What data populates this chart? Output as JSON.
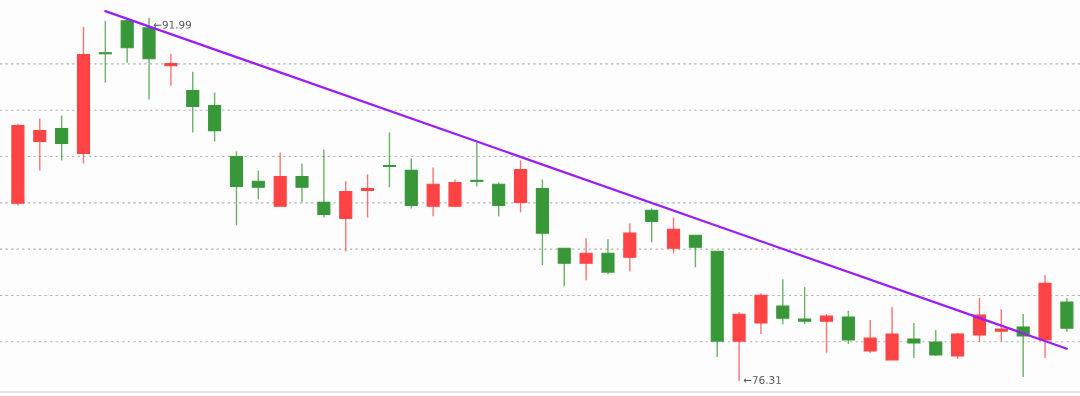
{
  "chart_data": {
    "type": "candlestick",
    "categories": [
      null,
      null,
      null,
      null,
      null,
      null,
      null,
      null,
      null,
      null,
      null,
      null,
      null,
      null,
      null,
      null,
      null,
      null,
      null,
      null,
      null,
      null,
      null,
      null,
      null,
      null,
      null,
      null,
      null,
      null,
      null,
      null,
      null,
      null,
      null,
      null,
      null,
      null,
      null,
      null,
      null,
      null,
      null,
      null,
      null,
      null,
      null,
      null,
      null
    ],
    "ohlc": [
      [
        83.98,
        87.42,
        83.89,
        87.34
      ],
      [
        86.65,
        87.64,
        85.4,
        87.12
      ],
      [
        87.21,
        87.77,
        85.83,
        86.56
      ],
      [
        86.13,
        91.6,
        85.7,
        90.4
      ],
      [
        90.48,
        91.86,
        89.19,
        90.44
      ],
      [
        91.86,
        91.95,
        90.05,
        90.7
      ],
      [
        91.56,
        91.99,
        88.46,
        90.22
      ],
      [
        89.92,
        90.44,
        89.06,
        90.01
      ],
      [
        88.85,
        89.66,
        87.04,
        88.16
      ],
      [
        88.2,
        88.76,
        86.65,
        87.12
      ],
      [
        86.0,
        86.22,
        83.03,
        84.71
      ],
      [
        84.93,
        85.4,
        84.15,
        84.67
      ],
      [
        83.85,
        86.17,
        83.85,
        85.14
      ],
      [
        85.14,
        85.7,
        84.02,
        84.67
      ],
      [
        84.02,
        86.3,
        83.37,
        83.5
      ],
      [
        83.33,
        84.93,
        81.91,
        84.49
      ],
      [
        84.54,
        85.23,
        83.37,
        84.62
      ],
      [
        85.61,
        87.04,
        84.67,
        85.57
      ],
      [
        85.4,
        85.92,
        83.76,
        83.89
      ],
      [
        83.85,
        85.53,
        83.42,
        84.8
      ],
      [
        83.85,
        85.01,
        83.81,
        84.88
      ],
      [
        84.97,
        86.6,
        84.71,
        84.93
      ],
      [
        84.8,
        84.88,
        83.42,
        83.89
      ],
      [
        84.02,
        85.83,
        83.59,
        85.44
      ],
      [
        84.62,
        85.01,
        81.31,
        82.69
      ],
      [
        82.04,
        82.04,
        80.4,
        81.39
      ],
      [
        81.39,
        82.47,
        80.66,
        81.82
      ],
      [
        81.82,
        82.43,
        80.92,
        81.01
      ],
      [
        81.65,
        83.12,
        81.05,
        82.69
      ],
      [
        83.68,
        83.76,
        82.3,
        83.2
      ],
      [
        82.04,
        83.37,
        81.82,
        82.86
      ],
      [
        82.6,
        82.6,
        81.22,
        82.08
      ],
      [
        81.91,
        81.91,
        77.34,
        78.03
      ],
      [
        78.03,
        79.28,
        76.31,
        79.19
      ],
      [
        78.81,
        80.1,
        78.34,
        80.01
      ],
      [
        79.54,
        80.7,
        78.76,
        79.02
      ],
      [
        78.98,
        80.36,
        78.76,
        78.89
      ],
      [
        78.89,
        79.2,
        77.52,
        79.11
      ],
      [
        79.07,
        79.33,
        77.9,
        78.08
      ],
      [
        77.6,
        78.94,
        77.52,
        78.16
      ],
      [
        77.21,
        79.5,
        77.21,
        78.33
      ],
      [
        78.12,
        78.81,
        77.3,
        77.95
      ],
      [
        77.99,
        78.51,
        77.39,
        77.43
      ],
      [
        77.39,
        78.38,
        77.26,
        78.33
      ],
      [
        78.29,
        79.89,
        77.99,
        79.15
      ],
      [
        78.46,
        79.41,
        78.03,
        78.55
      ],
      [
        78.64,
        79.2,
        76.48,
        78.25
      ],
      [
        78.08,
        80.88,
        77.3,
        80.53
      ],
      [
        79.71,
        79.89,
        78.42,
        78.59
      ]
    ],
    "colors": [
      "#fd4343",
      "#fd4343",
      "#389738",
      "#fd4343",
      "#389738",
      "#389738",
      "#389738",
      "#fd4343",
      "#389738",
      "#389738",
      "#389738",
      "#389738",
      "#fd4343",
      "#389738",
      "#389738",
      "#fd4343",
      "#fd4343",
      "#389738",
      "#389738",
      "#fd4343",
      "#fd4343",
      "#389738",
      "#389738",
      "#fd4343",
      "#389738",
      "#389738",
      "#fd4343",
      "#389738",
      "#fd4343",
      "#389738",
      "#fd4343",
      "#389738",
      "#389738",
      "#fd4343",
      "#fd4343",
      "#389738",
      "#389738",
      "#fd4343",
      "#389738",
      "#fd4343",
      "#fd4343",
      "#389738",
      "#389738",
      "#fd4343",
      "#fd4343",
      "#fd4343",
      "#389738",
      "#fd4343",
      "#389738"
    ],
    "series": [
      {
        "type": "line",
        "color": "#9b1dff",
        "values": [
          null,
          null,
          null,
          null,
          92.28,
          null,
          null,
          null,
          null,
          null,
          null,
          null,
          null,
          null,
          null,
          null,
          null,
          null,
          null,
          null,
          null,
          null,
          null,
          null,
          null,
          null,
          null,
          null,
          null,
          null,
          null,
          null,
          null,
          null,
          null,
          null,
          null,
          null,
          null,
          null,
          null,
          null,
          null,
          null,
          null,
          null,
          null,
          null,
          77.7
        ]
      }
    ],
    "yticks": [
      {
        "value": 78,
        "label": null
      },
      {
        "value": 80,
        "label": null
      },
      {
        "value": 82,
        "label": null
      },
      {
        "value": 84,
        "label": null
      },
      {
        "value": 86,
        "label": null
      },
      {
        "value": 88,
        "label": null
      },
      {
        "value": 90,
        "label": null
      }
    ],
    "grid": "y",
    "annotations": [
      "←91.99",
      "←76.31"
    ]
  }
}
